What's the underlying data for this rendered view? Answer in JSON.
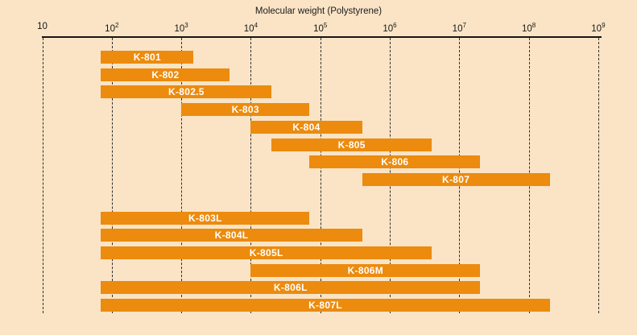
{
  "chart_data": {
    "type": "bar",
    "subtype": "horizontal-log-range-bars",
    "xlabel": "Molecular weight (Polystyrene)",
    "x_axis": {
      "scale": "log10",
      "min": 10,
      "max": 1000000000,
      "ticks": [
        {
          "base": "10",
          "exp": "",
          "value": 10
        },
        {
          "base": "10",
          "exp": "2",
          "value": 100
        },
        {
          "base": "10",
          "exp": "3",
          "value": 1000
        },
        {
          "base": "10",
          "exp": "4",
          "value": 10000
        },
        {
          "base": "10",
          "exp": "5",
          "value": 100000
        },
        {
          "base": "10",
          "exp": "6",
          "value": 1000000
        },
        {
          "base": "10",
          "exp": "7",
          "value": 10000000
        },
        {
          "base": "10",
          "exp": "8",
          "value": 100000000
        },
        {
          "base": "10",
          "exp": "9",
          "value": 1000000000
        }
      ]
    },
    "groups": [
      {
        "rows": [
          {
            "label": "K-801",
            "mw_min": 70,
            "mw_max": 1500
          },
          {
            "label": "K-802",
            "mw_min": 70,
            "mw_max": 5000
          },
          {
            "label": "K-802.5",
            "mw_min": 70,
            "mw_max": 20000
          },
          {
            "label": "K-803",
            "mw_min": 1000,
            "mw_max": 70000
          },
          {
            "label": "K-804",
            "mw_min": 10000,
            "mw_max": 400000
          },
          {
            "label": "K-805",
            "mw_min": 20000,
            "mw_max": 4000000
          },
          {
            "label": "K-806",
            "mw_min": 70000,
            "mw_max": 20000000
          },
          {
            "label": "K-807",
            "mw_min": 400000,
            "mw_max": 200000000
          }
        ]
      },
      {
        "rows": [
          {
            "label": "K-803L",
            "mw_min": 70,
            "mw_max": 70000
          },
          {
            "label": "K-804L",
            "mw_min": 70,
            "mw_max": 400000
          },
          {
            "label": "K-805L",
            "mw_min": 70,
            "mw_max": 4000000
          },
          {
            "label": "K-806M",
            "mw_min": 10000,
            "mw_max": 20000000
          },
          {
            "label": "K-806L",
            "mw_min": 70,
            "mw_max": 20000000
          },
          {
            "label": "K-807L",
            "mw_min": 70,
            "mw_max": 200000000
          }
        ]
      }
    ],
    "layout": {
      "grid": "dashed-vertical",
      "legend": "none",
      "colors": {
        "background": "#fae4c5",
        "bar": "#ec8b0e",
        "bar_label": "#ffffff",
        "axis": "#161616",
        "grid": "#2e2e2e",
        "title_text": "#1b1b1b"
      }
    }
  }
}
